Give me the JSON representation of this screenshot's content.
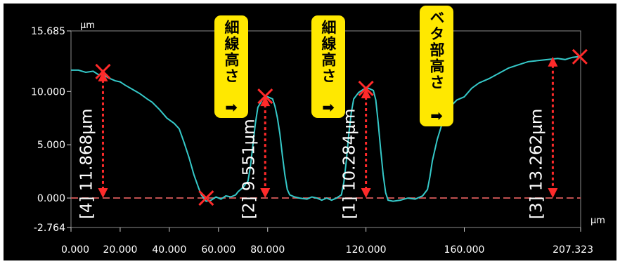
{
  "chart_data": {
    "type": "line",
    "x_unit": "μm",
    "y_unit": "μm",
    "xlim": [
      0.0,
      207.323
    ],
    "ylim": [
      -2.764,
      15.685
    ],
    "y_ticks": [
      "15.685",
      "10.000",
      "5.000",
      "0.000",
      "-2.764"
    ],
    "y_tick_values": [
      15.685,
      10.0,
      5.0,
      0.0,
      -2.764
    ],
    "x_ticks": [
      "0.000",
      "20.000",
      "40.000",
      "60.000",
      "80.000",
      "120.000",
      "160.000",
      "207.323"
    ],
    "x_tick_values": [
      0,
      20,
      40,
      60,
      80,
      120,
      160,
      207.323
    ],
    "series": [
      {
        "color": "#35c9c9",
        "points": [
          [
            0,
            12.0
          ],
          [
            3,
            12.0
          ],
          [
            6,
            11.8
          ],
          [
            9,
            11.9
          ],
          [
            11,
            11.6
          ],
          [
            13,
            11.6
          ],
          [
            15,
            11.3
          ],
          [
            18,
            11.0
          ],
          [
            20,
            10.9
          ],
          [
            22,
            10.6
          ],
          [
            25,
            10.2
          ],
          [
            28,
            9.8
          ],
          [
            31,
            9.3
          ],
          [
            33,
            9.0
          ],
          [
            36,
            8.3
          ],
          [
            39,
            7.5
          ],
          [
            42,
            7.0
          ],
          [
            44,
            6.5
          ],
          [
            46,
            5.2
          ],
          [
            48,
            3.8
          ],
          [
            50,
            2.2
          ],
          [
            52,
            0.9
          ],
          [
            53,
            0.3
          ],
          [
            54,
            0.0
          ],
          [
            55,
            -0.3
          ],
          [
            57,
            -0.2
          ],
          [
            59,
            0.1
          ],
          [
            61,
            -0.1
          ],
          [
            63,
            0.2
          ],
          [
            65,
            0.1
          ],
          [
            67,
            0.3
          ],
          [
            68,
            0.6
          ],
          [
            70,
            1.0
          ],
          [
            72,
            1.6
          ],
          [
            73,
            3.0
          ],
          [
            74,
            5.0
          ],
          [
            75,
            7.0
          ],
          [
            76,
            8.5
          ],
          [
            78,
            9.3
          ],
          [
            80,
            9.5
          ],
          [
            82,
            9.3
          ],
          [
            83,
            8.6
          ],
          [
            84,
            7.5
          ],
          [
            85,
            6.0
          ],
          [
            86,
            4.0
          ],
          [
            87,
            2.2
          ],
          [
            88,
            0.8
          ],
          [
            89,
            0.3
          ],
          [
            91,
            0.1
          ],
          [
            93,
            0.0
          ],
          [
            96,
            -0.1
          ],
          [
            98,
            0.1
          ],
          [
            100,
            0.0
          ],
          [
            102,
            -0.2
          ],
          [
            104,
            0.0
          ],
          [
            106,
            -0.2
          ],
          [
            108,
            0.0
          ],
          [
            110,
            0.3
          ],
          [
            111,
            1.5
          ],
          [
            112,
            3.5
          ],
          [
            113,
            6.0
          ],
          [
            114,
            8.0
          ],
          [
            115,
            9.3
          ],
          [
            117,
            9.9
          ],
          [
            119,
            10.2
          ],
          [
            121,
            10.3
          ],
          [
            123,
            10.1
          ],
          [
            124,
            9.2
          ],
          [
            125,
            7.0
          ],
          [
            126,
            4.5
          ],
          [
            127,
            2.2
          ],
          [
            128,
            0.5
          ],
          [
            129,
            -0.2
          ],
          [
            131,
            -0.3
          ],
          [
            134,
            -0.2
          ],
          [
            137,
            0.0
          ],
          [
            140,
            -0.1
          ],
          [
            143,
            0.2
          ],
          [
            145,
            0.8
          ],
          [
            146,
            2.0
          ],
          [
            147,
            3.5
          ],
          [
            149,
            5.5
          ],
          [
            151,
            7.0
          ],
          [
            154,
            8.5
          ],
          [
            157,
            9.2
          ],
          [
            160,
            9.5
          ],
          [
            163,
            10.3
          ],
          [
            166,
            10.8
          ],
          [
            170,
            11.2
          ],
          [
            174,
            11.7
          ],
          [
            178,
            12.2
          ],
          [
            182,
            12.5
          ],
          [
            186,
            12.8
          ],
          [
            190,
            12.9
          ],
          [
            194,
            13.0
          ],
          [
            198,
            13.1
          ],
          [
            201,
            13.0
          ],
          [
            204,
            13.2
          ],
          [
            207.323,
            13.3
          ]
        ]
      }
    ],
    "measurement_markers": [
      {
        "label": "[4] 11.868μm",
        "x": 13,
        "top": 11.868,
        "bottom": 0.0
      },
      {
        "label": "[2] 9.551μm",
        "x": 79,
        "top": 9.551,
        "bottom": 0.0
      },
      {
        "label": "[1] 10.284μm",
        "x": 120,
        "top": 10.284,
        "bottom": 0.0
      },
      {
        "label": "[3] 13.262μm",
        "x": 196,
        "top": 13.262,
        "bottom": 0.0
      }
    ],
    "x_markers": [
      {
        "x": 13,
        "y": 11.868
      },
      {
        "x": 55,
        "y": 0.0
      },
      {
        "x": 79,
        "y": 9.551
      },
      {
        "x": 120,
        "y": 10.284
      },
      {
        "x": 207,
        "y": 13.262
      }
    ],
    "baseline": 0.0
  },
  "callouts": [
    {
      "text": "細線高さ",
      "arrow": "➡"
    },
    {
      "text": "細線高さ",
      "arrow": "➡"
    },
    {
      "text": "ベタ部高さ",
      "arrow": "➡"
    }
  ],
  "colors": {
    "curve": "#35c9c9",
    "marker": "#ff2a2a",
    "baseline": "#c05050",
    "callout_bg": "#ffe800",
    "frame": "#ffffff",
    "background": "#000000"
  }
}
